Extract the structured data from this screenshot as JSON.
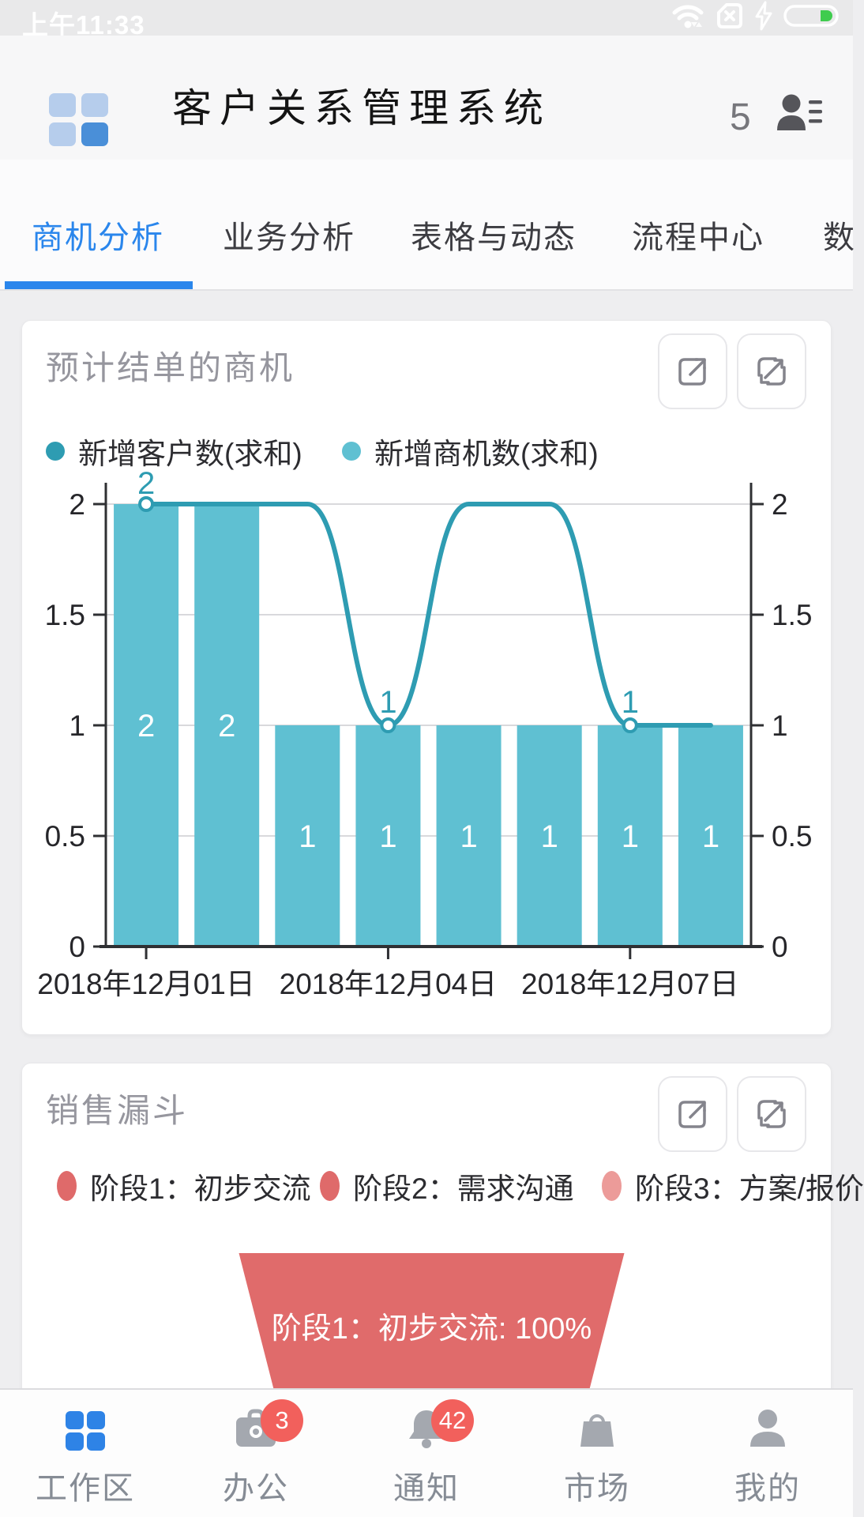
{
  "colors": {
    "accent_blue": "#2a86ec",
    "bar_teal": "#5fc0d2",
    "line_teal": "#2e9cb2",
    "funnel_red": "#e06b6b",
    "badge_red": "#f2605c",
    "battery_green": "#3fcc4e"
  },
  "status_bar": {
    "time": "上午11:33"
  },
  "header": {
    "title": "客户关系管理系统",
    "user_count": "5"
  },
  "tabs": {
    "items": [
      {
        "label": "商机分析",
        "active": true
      },
      {
        "label": "业务分析",
        "active": false
      },
      {
        "label": "表格与动态",
        "active": false
      },
      {
        "label": "流程中心",
        "active": false
      },
      {
        "label": "数",
        "active": false
      }
    ]
  },
  "opportunity_card": {
    "title": "预计结单的商机",
    "legend": [
      {
        "label": "新增客户数(求和)",
        "color": "#2e9cb2"
      },
      {
        "label": "新增商机数(求和)",
        "color": "#5fc0d2"
      }
    ],
    "chart_data": {
      "type": "bar+line",
      "n_categories": 8,
      "x_tick_labels": [
        {
          "index": 0,
          "label": "2018年12月01日"
        },
        {
          "index": 3,
          "label": "2018年12月04日"
        },
        {
          "index": 6,
          "label": "2018年12月07日"
        }
      ],
      "series": [
        {
          "name": "新增客户数(求和)",
          "type": "line",
          "color": "#2e9cb2",
          "values": [
            2,
            2,
            2,
            1,
            2,
            2,
            1,
            1
          ],
          "point_labels": {
            "0": "2",
            "3": "1",
            "6": "1"
          }
        },
        {
          "name": "新增商机数(求和)",
          "type": "bar",
          "color": "#5fc0d2",
          "values": [
            2,
            2,
            1,
            1,
            1,
            1,
            1,
            1
          ]
        }
      ],
      "ylim": [
        0,
        2
      ],
      "yticks": [
        0,
        0.5,
        1,
        1.5,
        2
      ],
      "y_axis_sides": [
        "left",
        "right"
      ],
      "grid": true
    }
  },
  "funnel_card": {
    "title": "销售漏斗",
    "legend": [
      {
        "label": "阶段1：初步交流",
        "color": "#df6a6a"
      },
      {
        "label": "阶段2：需求沟通",
        "color": "#df6a6a"
      },
      {
        "label": "阶段3：方案/报价",
        "color": "#ec9b99"
      }
    ],
    "chart_data": {
      "type": "funnel",
      "stages": [
        {
          "label": "阶段1：初步交流: 100%",
          "value": 100,
          "color": "#e06b6b"
        }
      ]
    }
  },
  "bottom_nav": {
    "items": [
      {
        "label": "工作区",
        "icon": "grid-icon",
        "active": true,
        "badge": ""
      },
      {
        "label": "办公",
        "icon": "briefcase-icon",
        "active": false,
        "badge": "3"
      },
      {
        "label": "通知",
        "icon": "bell-icon",
        "active": false,
        "badge": "42"
      },
      {
        "label": "市场",
        "icon": "shopping-bag-icon",
        "active": false,
        "badge": ""
      },
      {
        "label": "我的",
        "icon": "person-icon",
        "active": false,
        "badge": ""
      }
    ]
  }
}
